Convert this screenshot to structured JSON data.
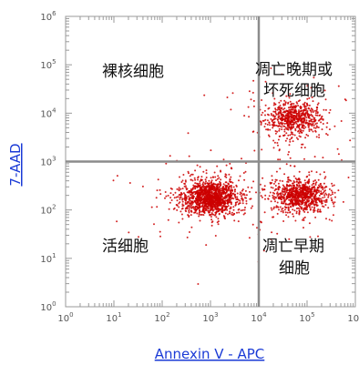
{
  "chart_data": {
    "type": "scatter",
    "title": "",
    "xlabel": "Annexin V - APC",
    "ylabel": "7-AAD",
    "x_scale": "log10",
    "y_scale": "log10",
    "xlim": [
      1,
      1000000
    ],
    "ylim": [
      1,
      1000000
    ],
    "x_ticks": [
      "10^0",
      "10^1",
      "10^2",
      "10^3",
      "10^4",
      "10^5",
      "10^6"
    ],
    "y_ticks": [
      "10^0",
      "10^1",
      "10^2",
      "10^3",
      "10^4",
      "10^5",
      "10^6"
    ],
    "gates": {
      "x": 10000,
      "y": 1000
    },
    "point_color": "#cc0000",
    "clusters": [
      {
        "name": "活细胞",
        "center": [
          1000,
          180
        ],
        "count": 1500
      },
      {
        "name": "凋亡早期细胞",
        "center": [
          70000,
          200
        ],
        "count": 900
      },
      {
        "name": "凋亡晚期或坏死细胞",
        "center": [
          50000,
          8000
        ],
        "count": 700
      }
    ],
    "quadrant_labels": {
      "upper_left": [
        "裸核细胞"
      ],
      "upper_right": [
        "凋亡晚期或",
        "坏死细胞"
      ],
      "lower_left": [
        "活细胞"
      ],
      "lower_right": [
        "凋亡早期",
        "细胞"
      ]
    }
  }
}
